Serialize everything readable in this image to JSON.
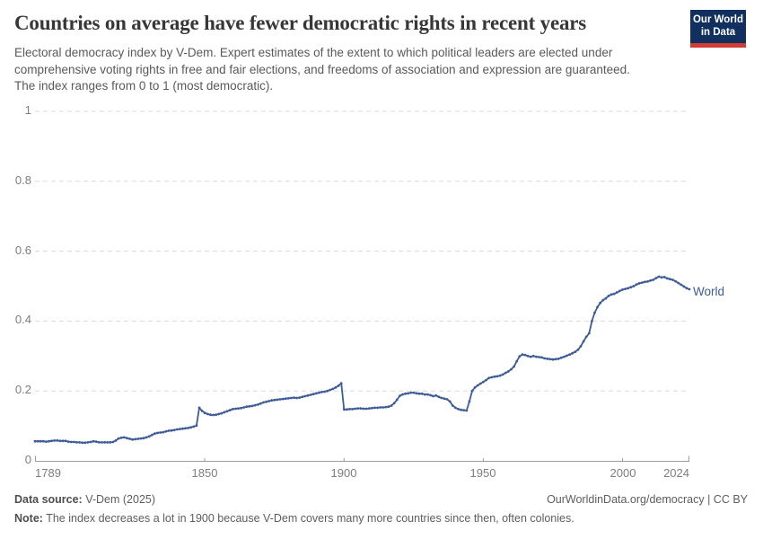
{
  "header": {
    "title": "Countries on average have fewer democratic rights in recent years",
    "subtitle": "Electoral democracy index by V-Dem. Expert estimates of the extent to which political leaders are elected under comprehensive voting rights in free and fair elections, and freedoms of association and expression are guaranteed. The index ranges from 0 to 1 (most democratic)."
  },
  "logo": {
    "line1": "Our World",
    "line2": "in Data",
    "bg_color": "#12305f",
    "stripe_color": "#d13d33"
  },
  "chart_data": {
    "type": "line",
    "title": "Countries on average have fewer democratic rights in recent years",
    "xlabel": "",
    "ylabel": "",
    "xlim": [
      1789,
      2024
    ],
    "ylim": [
      0,
      1
    ],
    "grid": "horizontal-dashed",
    "legend_position": "end-of-line",
    "x_ticks": [
      1789,
      1850,
      1900,
      1950,
      2000,
      2024
    ],
    "x_tick_labels": [
      "1789",
      "1850",
      "1900",
      "1950",
      "2000",
      "2024"
    ],
    "y_ticks": [
      0,
      0.2,
      0.4,
      0.6,
      0.8,
      1
    ],
    "y_tick_labels": [
      "0",
      "0.2",
      "0.4",
      "0.6",
      "0.8",
      "1"
    ],
    "series": [
      {
        "name": "World",
        "color": "#3e5c97",
        "start_year": 1789,
        "values": [
          0.056,
          0.056,
          0.056,
          0.056,
          0.055,
          0.056,
          0.057,
          0.058,
          0.058,
          0.057,
          0.057,
          0.057,
          0.055,
          0.054,
          0.054,
          0.053,
          0.053,
          0.052,
          0.052,
          0.053,
          0.054,
          0.056,
          0.055,
          0.053,
          0.053,
          0.053,
          0.053,
          0.053,
          0.054,
          0.058,
          0.064,
          0.066,
          0.067,
          0.065,
          0.063,
          0.061,
          0.062,
          0.063,
          0.064,
          0.065,
          0.067,
          0.07,
          0.074,
          0.078,
          0.08,
          0.081,
          0.082,
          0.084,
          0.086,
          0.087,
          0.088,
          0.09,
          0.091,
          0.092,
          0.093,
          0.094,
          0.096,
          0.098,
          0.101,
          0.152,
          0.143,
          0.137,
          0.134,
          0.132,
          0.131,
          0.132,
          0.134,
          0.136,
          0.139,
          0.142,
          0.145,
          0.148,
          0.149,
          0.15,
          0.151,
          0.153,
          0.155,
          0.156,
          0.157,
          0.159,
          0.161,
          0.164,
          0.167,
          0.169,
          0.171,
          0.173,
          0.174,
          0.175,
          0.176,
          0.177,
          0.178,
          0.179,
          0.18,
          0.181,
          0.18,
          0.181,
          0.183,
          0.185,
          0.187,
          0.189,
          0.191,
          0.193,
          0.195,
          0.197,
          0.198,
          0.2,
          0.203,
          0.206,
          0.21,
          0.215,
          0.222,
          0.147,
          0.147,
          0.148,
          0.148,
          0.149,
          0.15,
          0.15,
          0.149,
          0.149,
          0.15,
          0.151,
          0.152,
          0.152,
          0.153,
          0.153,
          0.154,
          0.155,
          0.158,
          0.165,
          0.175,
          0.186,
          0.19,
          0.192,
          0.193,
          0.195,
          0.195,
          0.193,
          0.192,
          0.192,
          0.19,
          0.19,
          0.188,
          0.185,
          0.187,
          0.183,
          0.18,
          0.178,
          0.176,
          0.17,
          0.158,
          0.152,
          0.148,
          0.146,
          0.145,
          0.144,
          0.17,
          0.2,
          0.21,
          0.216,
          0.221,
          0.226,
          0.231,
          0.237,
          0.239,
          0.241,
          0.242,
          0.244,
          0.247,
          0.252,
          0.256,
          0.262,
          0.27,
          0.285,
          0.299,
          0.304,
          0.303,
          0.3,
          0.298,
          0.3,
          0.298,
          0.297,
          0.296,
          0.293,
          0.292,
          0.291,
          0.29,
          0.291,
          0.292,
          0.295,
          0.298,
          0.301,
          0.304,
          0.308,
          0.312,
          0.318,
          0.328,
          0.342,
          0.355,
          0.365,
          0.4,
          0.424,
          0.44,
          0.452,
          0.46,
          0.465,
          0.472,
          0.476,
          0.478,
          0.482,
          0.486,
          0.49,
          0.492,
          0.494,
          0.497,
          0.5,
          0.505,
          0.508,
          0.51,
          0.512,
          0.513,
          0.516,
          0.518,
          0.523,
          0.527,
          0.525,
          0.526,
          0.522,
          0.52,
          0.518,
          0.514,
          0.509,
          0.504,
          0.499,
          0.494,
          0.491
        ]
      }
    ]
  },
  "footer": {
    "datasource_label": "Data source:",
    "datasource_value": " V-Dem (2025)",
    "link": "OurWorldinData.org/democracy | CC BY",
    "note_label": "Note:",
    "note_value": " The index decreases a lot in 1900 because V-Dem covers many more countries since then, often colonies."
  }
}
